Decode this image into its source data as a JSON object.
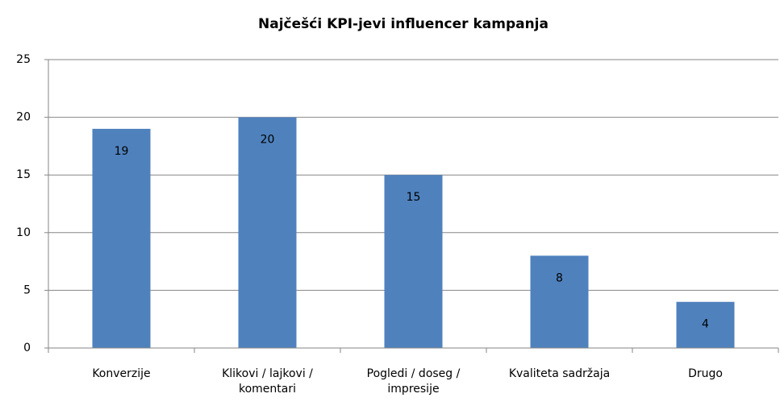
{
  "chart_data": {
    "type": "bar",
    "title": "Najčešći KPI-jevi influencer kampanja",
    "categories": [
      "Konverzije",
      "Klikovi / lajkovi / komentari",
      "Pogledi / doseg / impresije",
      "Kvaliteta sadržaja",
      "Drugo"
    ],
    "values": [
      19,
      20,
      15,
      8,
      4
    ],
    "color": "#4f81bd",
    "ylim": [
      0,
      25
    ],
    "yticks": [
      0,
      5,
      10,
      15,
      20,
      25
    ],
    "grid": true
  }
}
